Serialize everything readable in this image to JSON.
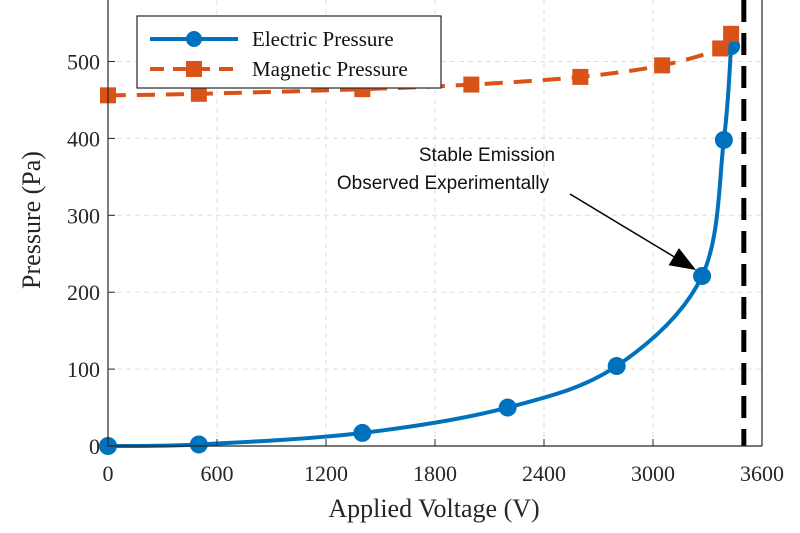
{
  "chart_data": {
    "type": "line",
    "title": "",
    "xlabel": "Applied Voltage (V)",
    "ylabel": "Pressure (Pa)",
    "xlim": [
      0,
      3600
    ],
    "ylim": [
      0,
      580
    ],
    "xticks": [
      0,
      600,
      1200,
      1800,
      2400,
      3000,
      3600
    ],
    "yticks": [
      0,
      100,
      200,
      300,
      400,
      500
    ],
    "grid": true,
    "legend_position": "top-left",
    "series": [
      {
        "name": "Electric Pressure",
        "color": "#0072BD",
        "style": "solid",
        "marker": "circle",
        "x": [
          0,
          500,
          1400,
          2200,
          2800,
          3270,
          3390,
          3430
        ],
        "y": [
          0,
          2,
          17,
          50,
          104,
          221,
          398,
          520
        ]
      },
      {
        "name": "Magnetic Pressure",
        "color": "#D95319",
        "style": "dashed",
        "marker": "square",
        "x": [
          0,
          500,
          1400,
          2000,
          2600,
          3050,
          3370,
          3430
        ],
        "y": [
          456,
          458,
          464,
          470,
          480,
          495,
          517,
          536
        ]
      }
    ],
    "vline": {
      "x": 3500,
      "color": "#000000",
      "style": "dashed"
    },
    "annotation": {
      "lines": [
        "Stable Emission",
        "Observed Experimentally"
      ],
      "target_x": 3270,
      "target_y": 221
    }
  }
}
